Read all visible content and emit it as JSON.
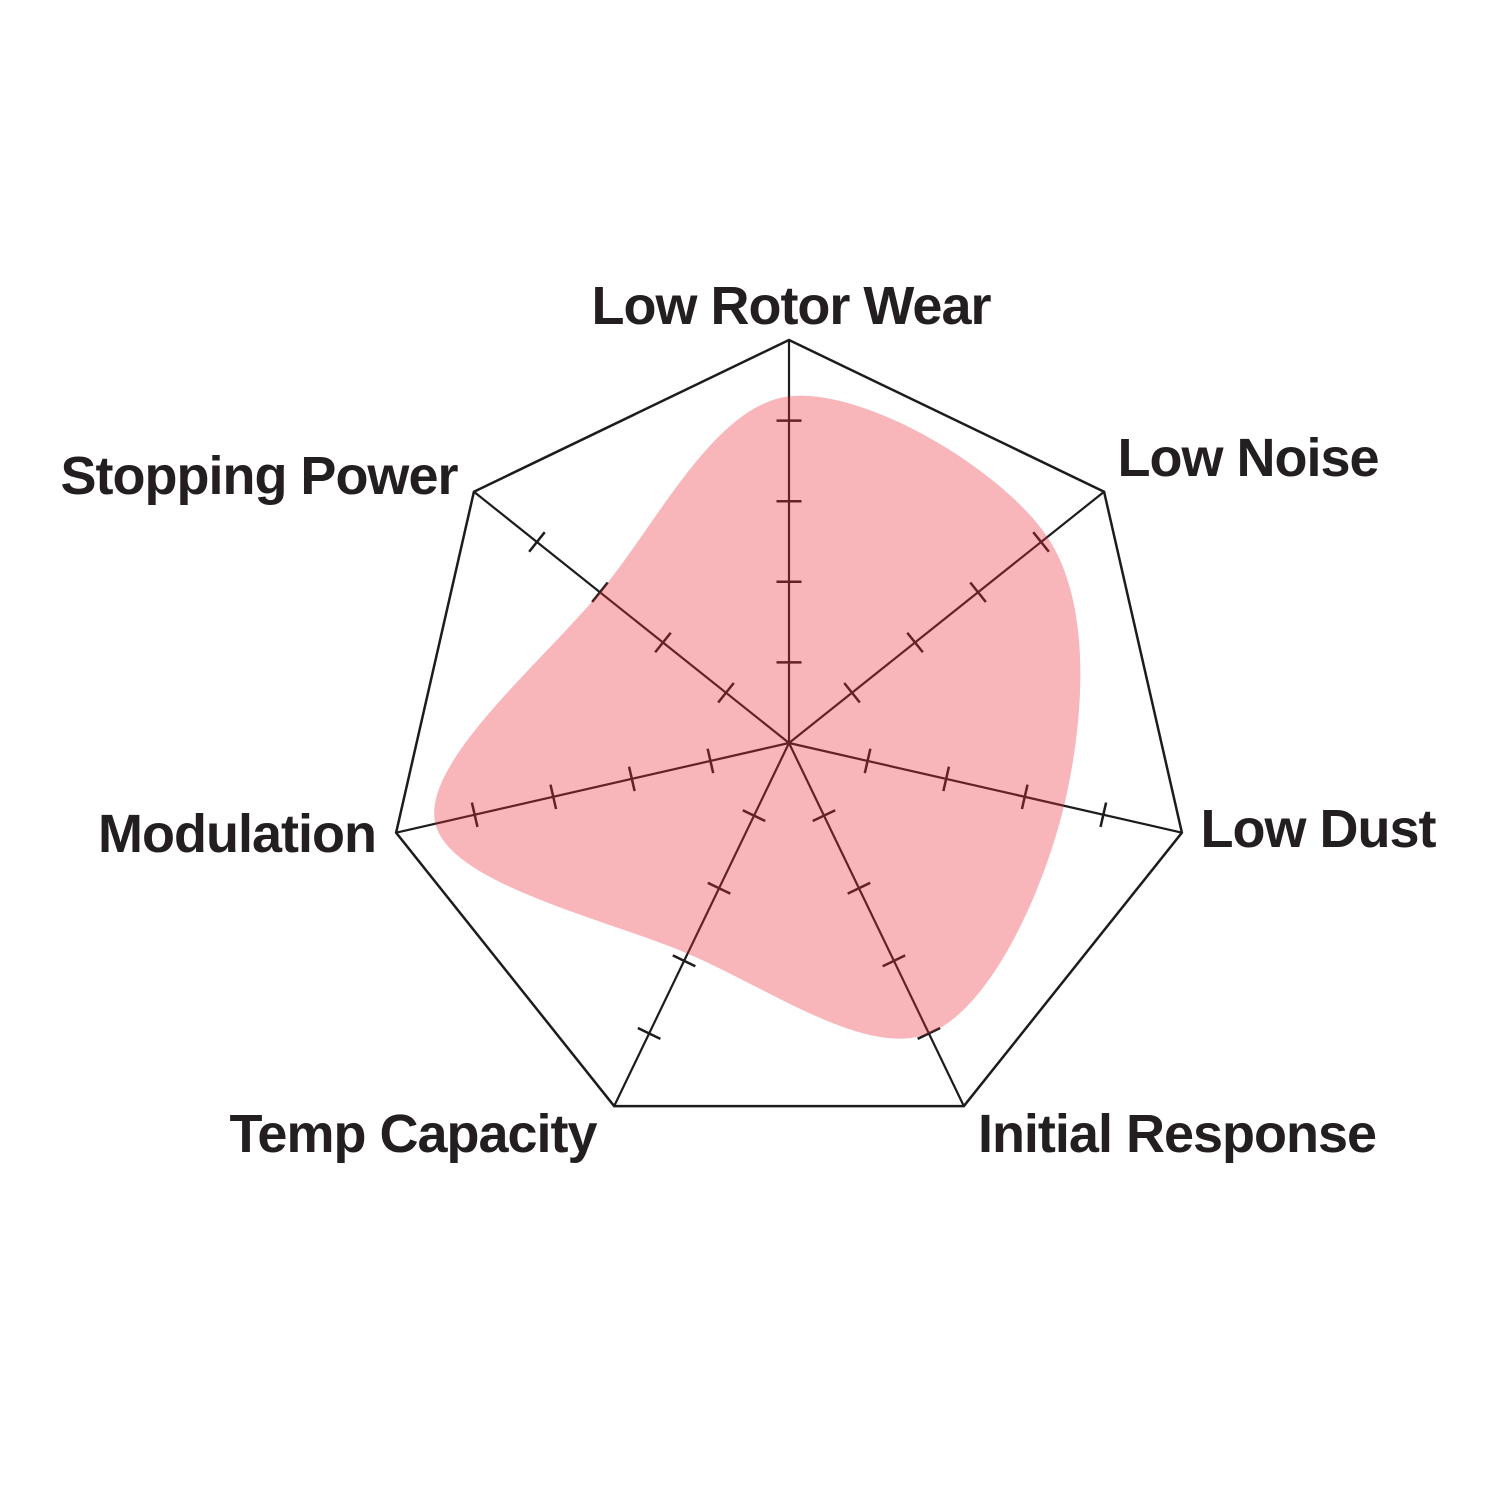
{
  "chart_data": {
    "type": "radar",
    "categories": [
      "Low Rotor Wear",
      "Low Noise",
      "Low Dust",
      "Initial Response",
      "Temp Capacity",
      "Modulation",
      "Stopping Power"
    ],
    "values": [
      4.3,
      4.1,
      3.5,
      4.0,
      2.9,
      4.5,
      3.0
    ],
    "scale_max": 5,
    "tick_values": [
      1,
      2,
      3,
      4
    ],
    "grid": "spokes-with-ticks, single outer ring, no radial value labels",
    "legend": "none",
    "colors": {
      "fill": "rgba(234,46,58,0.35)",
      "fill_over_white_appearance": "#f8b6ba",
      "axis_line": "#1c1c1c",
      "label_text": "#231f20"
    }
  }
}
